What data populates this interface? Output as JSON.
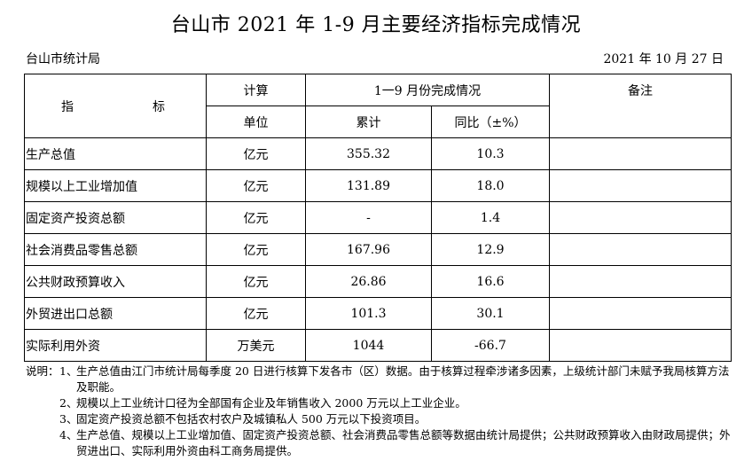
{
  "title": "台山市 2021 年 1-9 月主要经济指标完成情况",
  "issuer": "台山市统计局",
  "date": "2021 年 10 月 27 日",
  "table": {
    "header": {
      "indicator_char1": "指",
      "indicator_char2": "标",
      "unit_line1": "计算",
      "unit_line2": "单位",
      "period": "1一9 月份完成情况",
      "cumulative": "累计",
      "yoy": "同比（±%）",
      "remarks": "备注"
    },
    "rows": [
      {
        "name": "生产总值",
        "unit": "亿元",
        "cumulative": "355.32",
        "yoy": "10.3",
        "remark": ""
      },
      {
        "name": "规模以上工业增加值",
        "unit": "亿元",
        "cumulative": "131.89",
        "yoy": "18.0",
        "remark": ""
      },
      {
        "name": "固定资产投资总额",
        "unit": "亿元",
        "cumulative": "-",
        "yoy": "1.4",
        "remark": ""
      },
      {
        "name": "社会消费品零售总额",
        "unit": "亿元",
        "cumulative": "167.96",
        "yoy": "12.9",
        "remark": ""
      },
      {
        "name": "公共财政预算收入",
        "unit": "亿元",
        "cumulative": "26.86",
        "yoy": "16.6",
        "remark": ""
      },
      {
        "name": "外贸进出口总额",
        "unit": "亿元",
        "cumulative": "101.3",
        "yoy": "30.1",
        "remark": ""
      },
      {
        "name": "实际利用外资",
        "unit": "万美元",
        "cumulative": "1044",
        "yoy": "-66.7",
        "remark": ""
      }
    ]
  },
  "notes": {
    "lead": "说明：",
    "items": [
      {
        "num": "1、",
        "text": "生产总值由江门市统计局每季度 20 日进行核算下发各市（区）数据。由于核算过程牵涉诸多因素，上级统计部门未赋予我局核算方法及职能。"
      },
      {
        "num": "2、",
        "text": "规模以上工业统计口径为全部国有企业及年销售收入 2000 万元以上工业企业。"
      },
      {
        "num": "3、",
        "text": "固定资产投资总额不包括农村农户及城镇私人 500 万元以下投资项目。"
      },
      {
        "num": "4、",
        "text": "生产总值、规模以上工业增加值、固定资产投资总额、社会消费品零售总额等数据由统计局提供；公共财政预算收入由财政局提供；外贸进出口、实际利用外资由科工商务局提供。"
      }
    ]
  }
}
